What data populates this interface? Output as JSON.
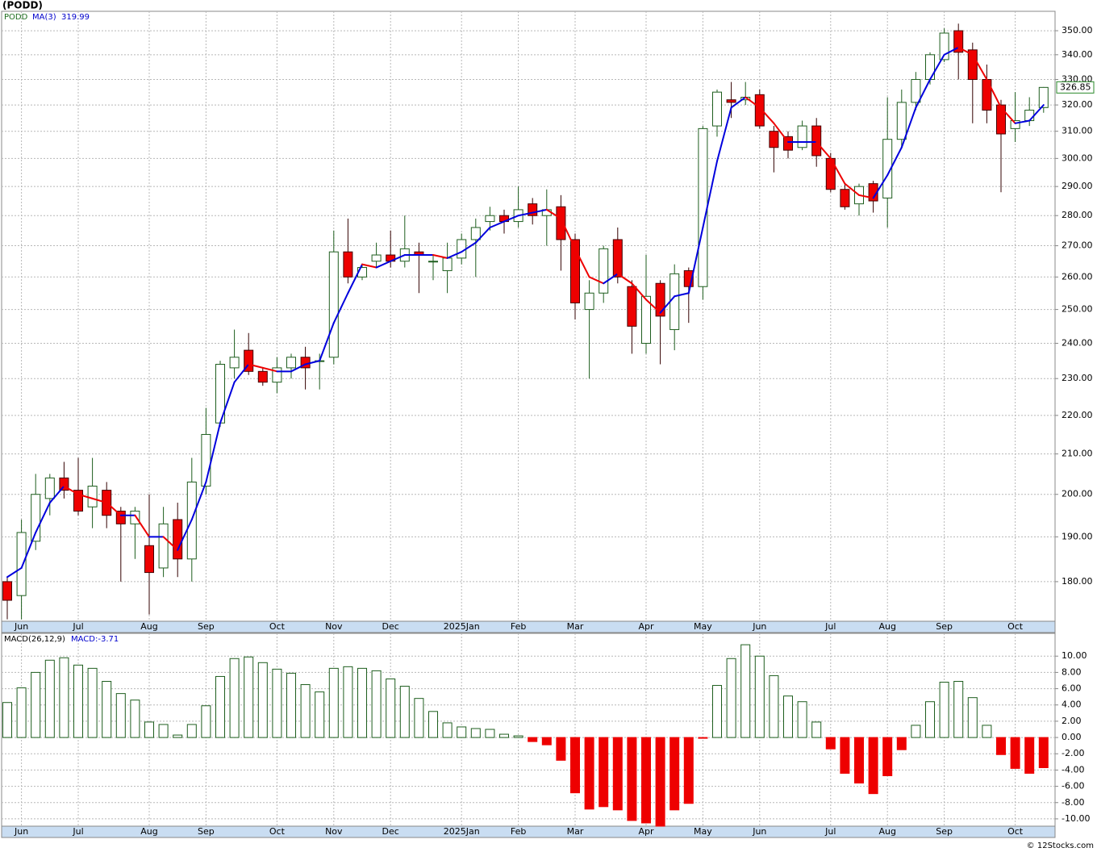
{
  "title": "(PODD)",
  "copyright": "© 12Stocks.com",
  "chart_data": [
    {
      "type": "candlestick",
      "symbol": "PODD",
      "ma_name": "MA(3)",
      "ma_value": 319.99,
      "log_scale": true,
      "grid": true,
      "up_color": "#ffffff",
      "up_edge": "#1e5e1e",
      "down_color": "#ee0000",
      "ma_up_color": "#0000dd",
      "ma_down_color": "#ee0000",
      "categories": [
        null,
        "Jun",
        null,
        null,
        null,
        "Jul",
        null,
        null,
        null,
        null,
        "Aug",
        null,
        null,
        null,
        "Sep",
        null,
        null,
        null,
        null,
        "Oct",
        null,
        null,
        null,
        "Nov",
        null,
        null,
        null,
        "Dec",
        null,
        null,
        null,
        null,
        "2025Jan",
        null,
        null,
        null,
        "Feb",
        null,
        null,
        null,
        "Mar",
        null,
        null,
        null,
        null,
        "Apr",
        null,
        null,
        null,
        "May",
        null,
        null,
        null,
        "Jun",
        null,
        null,
        null,
        null,
        "Jul",
        null,
        null,
        null,
        "Aug",
        null,
        null,
        null,
        "Sep",
        null,
        null,
        null,
        null,
        "Oct",
        null,
        null
      ],
      "open": [
        180,
        177,
        189,
        199,
        204,
        201,
        197,
        201,
        196,
        193,
        188,
        183,
        194,
        185,
        202,
        218,
        233,
        238,
        232,
        229,
        233,
        236,
        235,
        236,
        268,
        260,
        265,
        267,
        265,
        268,
        265,
        262,
        266,
        272,
        278,
        280,
        278,
        284,
        280,
        283,
        272,
        250,
        255,
        272,
        257,
        240,
        258,
        244,
        262,
        257,
        312,
        322,
        322,
        324,
        310,
        308,
        304,
        312,
        300,
        289,
        284,
        291,
        286,
        307,
        321,
        330,
        338,
        350,
        342,
        330,
        320,
        311,
        314,
        319
      ],
      "high": [
        181,
        194,
        205,
        205,
        208,
        209,
        209,
        203,
        197,
        197,
        200,
        197,
        198,
        209,
        222,
        235,
        244,
        243,
        233,
        236,
        237,
        239,
        237,
        275,
        279,
        264,
        271,
        275,
        280,
        271,
        267,
        271,
        274,
        279,
        283,
        282,
        290,
        286,
        289,
        287,
        274,
        259,
        270,
        276,
        259,
        267,
        259,
        264,
        263,
        312,
        326,
        329,
        329,
        326,
        312,
        310,
        314,
        315,
        302,
        291,
        291,
        292,
        323,
        326,
        333,
        341,
        351,
        353,
        345,
        336,
        322,
        325,
        323,
        327
      ],
      "low": [
        172,
        172,
        187,
        195,
        199,
        195,
        192,
        192,
        180,
        185,
        173,
        181,
        181,
        180,
        200,
        217,
        230,
        231,
        228,
        226,
        230,
        227,
        227,
        234,
        258,
        259,
        263,
        263,
        263,
        255,
        259,
        255,
        264,
        260,
        275,
        274,
        276,
        277,
        270,
        262,
        247,
        230,
        252,
        258,
        237,
        237,
        234,
        238,
        246,
        253,
        308,
        315,
        320,
        311,
        295,
        300,
        303,
        297,
        288,
        282,
        280,
        281,
        276,
        304,
        318,
        328,
        337,
        330,
        313,
        313,
        288,
        306,
        312,
        317
      ],
      "close": [
        176,
        191,
        200,
        204,
        201,
        196,
        202,
        195,
        193,
        196,
        182,
        193,
        185,
        203,
        215,
        234,
        236,
        232,
        229,
        233,
        236,
        233,
        235,
        268,
        260,
        263,
        267,
        265,
        269,
        267,
        265,
        266,
        272,
        276,
        280,
        278,
        282,
        280,
        282,
        272,
        252,
        255,
        269,
        260,
        245,
        254,
        248,
        261,
        257,
        311,
        325,
        321,
        323,
        312,
        304,
        303,
        312,
        301,
        289,
        283,
        290,
        285,
        307,
        321,
        330,
        340,
        349,
        341,
        330,
        318,
        309,
        314,
        318,
        326.85
      ],
      "ma": [
        181,
        183,
        191,
        198,
        202,
        200,
        199,
        198,
        195,
        195,
        190,
        190,
        187,
        194,
        203,
        218,
        229,
        234,
        233,
        232,
        232,
        234,
        235,
        246,
        255,
        264,
        263,
        265,
        267,
        267,
        267,
        266,
        268,
        271,
        276,
        278,
        280,
        281,
        282,
        279,
        269,
        260,
        258,
        261,
        258,
        253,
        249,
        254,
        255,
        276,
        299,
        319,
        323,
        319,
        313,
        306,
        306,
        306,
        300,
        291,
        287,
        286,
        294,
        304,
        319,
        330,
        340,
        343,
        340,
        330,
        319,
        313,
        314,
        319.99
      ],
      "ylim": [
        171.6,
        358.3
      ],
      "yticks": [
        {
          "value": 180,
          "label": "180.00"
        },
        {
          "value": 190,
          "label": "190.00"
        },
        {
          "value": 200,
          "label": "200.00"
        },
        {
          "value": 210,
          "label": "210.00"
        },
        {
          "value": 220,
          "label": "220.00"
        },
        {
          "value": 230,
          "label": "230.00"
        },
        {
          "value": 240,
          "label": "240.00"
        },
        {
          "value": 250,
          "label": "250.00"
        },
        {
          "value": 260,
          "label": "260.00"
        },
        {
          "value": 270,
          "label": "270.00"
        },
        {
          "value": 280,
          "label": "280.00"
        },
        {
          "value": 290,
          "label": "290.00"
        },
        {
          "value": 300,
          "label": "300.00"
        },
        {
          "value": 310,
          "label": "310.00"
        },
        {
          "value": 320,
          "label": "320.00"
        },
        {
          "value": 330,
          "label": "330.00"
        },
        {
          "value": 340,
          "label": "340.00"
        },
        {
          "value": 350,
          "label": "350.00"
        }
      ]
    },
    {
      "type": "bar",
      "name": "MACD(26,12,9)",
      "value_label": "MACD:-3.71",
      "grid": true,
      "pos_edge": "#1e5e1e",
      "neg_color": "#ee0000",
      "categories": [
        null,
        "Jun",
        null,
        null,
        null,
        "Jul",
        null,
        null,
        null,
        null,
        "Aug",
        null,
        null,
        null,
        "Sep",
        null,
        null,
        null,
        null,
        "Oct",
        null,
        null,
        null,
        "Nov",
        null,
        null,
        null,
        "Dec",
        null,
        null,
        null,
        null,
        "2025Jan",
        null,
        null,
        null,
        "Feb",
        null,
        null,
        null,
        "Mar",
        null,
        null,
        null,
        null,
        "Apr",
        null,
        null,
        null,
        "May",
        null,
        null,
        null,
        "Jun",
        null,
        null,
        null,
        null,
        "Jul",
        null,
        null,
        null,
        "Aug",
        null,
        null,
        null,
        "Sep",
        null,
        null,
        null,
        null,
        "Oct",
        null,
        null
      ],
      "values": [
        4.3,
        6.1,
        8.0,
        9.5,
        9.8,
        8.9,
        8.5,
        6.9,
        5.4,
        4.6,
        1.9,
        1.6,
        0.3,
        1.6,
        3.9,
        7.5,
        9.7,
        9.9,
        9.2,
        8.4,
        7.9,
        6.5,
        5.6,
        8.5,
        8.7,
        8.5,
        8.2,
        7.2,
        6.3,
        4.8,
        3.2,
        1.8,
        1.3,
        1.1,
        1.0,
        0.4,
        0.2,
        -0.5,
        -0.9,
        -2.8,
        -6.8,
        -8.8,
        -8.5,
        -8.9,
        -10.2,
        -10.5,
        -10.9,
        -8.9,
        -8.1,
        -0.1,
        6.4,
        9.7,
        11.4,
        10.0,
        7.6,
        5.1,
        4.4,
        1.9,
        -1.4,
        -4.4,
        -5.6,
        -6.9,
        -4.7,
        -1.5,
        1.5,
        4.4,
        6.8,
        6.9,
        4.9,
        1.5,
        -2.1,
        -3.8,
        -4.4,
        -3.71
      ],
      "ylim": [
        -10.9,
        12.8
      ],
      "yticks": [
        {
          "value": 10,
          "label": "10.00"
        },
        {
          "value": 8,
          "label": "8.00"
        },
        {
          "value": 6,
          "label": "6.00"
        },
        {
          "value": 4,
          "label": "4.00"
        },
        {
          "value": 2,
          "label": "2.00"
        },
        {
          "value": 0,
          "label": "0.00"
        },
        {
          "value": -2,
          "label": "-2.00"
        },
        {
          "value": -4,
          "label": "-4.00"
        },
        {
          "value": -6,
          "label": "-6.00"
        },
        {
          "value": -8,
          "label": "-8.00"
        },
        {
          "value": -10,
          "label": "-10.00"
        }
      ]
    }
  ]
}
